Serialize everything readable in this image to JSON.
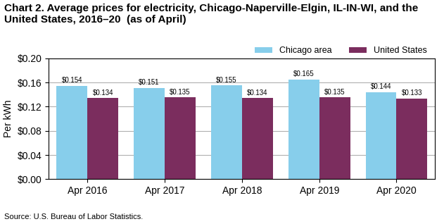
{
  "chart_data": {
    "type": "bar",
    "title": "Chart 2. Average prices for electricity, Chicago-Naperville-Elgin, IL-IN-WI, and the United States, 2016–20  (as of April)",
    "y_label": "Per kWh",
    "source": "Source: U.S. Bureau of Labor Statistics.",
    "categories": [
      "Apr 2016",
      "Apr 2017",
      "Apr 2018",
      "Apr 2019",
      "Apr 2020"
    ],
    "series": [
      {
        "name": "Chicago area",
        "color": "#87CEEB",
        "values": [
          0.154,
          0.151,
          0.155,
          0.165,
          0.144
        ],
        "value_labels": [
          "$0.154",
          "$0.151",
          "$0.155",
          "$0.165",
          "$0.144"
        ]
      },
      {
        "name": "United States",
        "color": "#7B2D5E",
        "values": [
          0.134,
          0.135,
          0.134,
          0.135,
          0.133
        ],
        "value_labels": [
          "$0.134",
          "$0.135",
          "$0.134",
          "$0.135",
          "$0.133"
        ]
      }
    ],
    "ylim": [
      0,
      0.2
    ],
    "yticks": [
      {
        "value": 0.0,
        "label": "$0.00"
      },
      {
        "value": 0.04,
        "label": "$0.04"
      },
      {
        "value": 0.08,
        "label": "$0.08"
      },
      {
        "value": 0.12,
        "label": "$0.12"
      },
      {
        "value": 0.16,
        "label": "$0.16"
      },
      {
        "value": 0.2,
        "label": "$0.20"
      }
    ],
    "grid": true,
    "legend": "upper right",
    "data_labels": true
  }
}
